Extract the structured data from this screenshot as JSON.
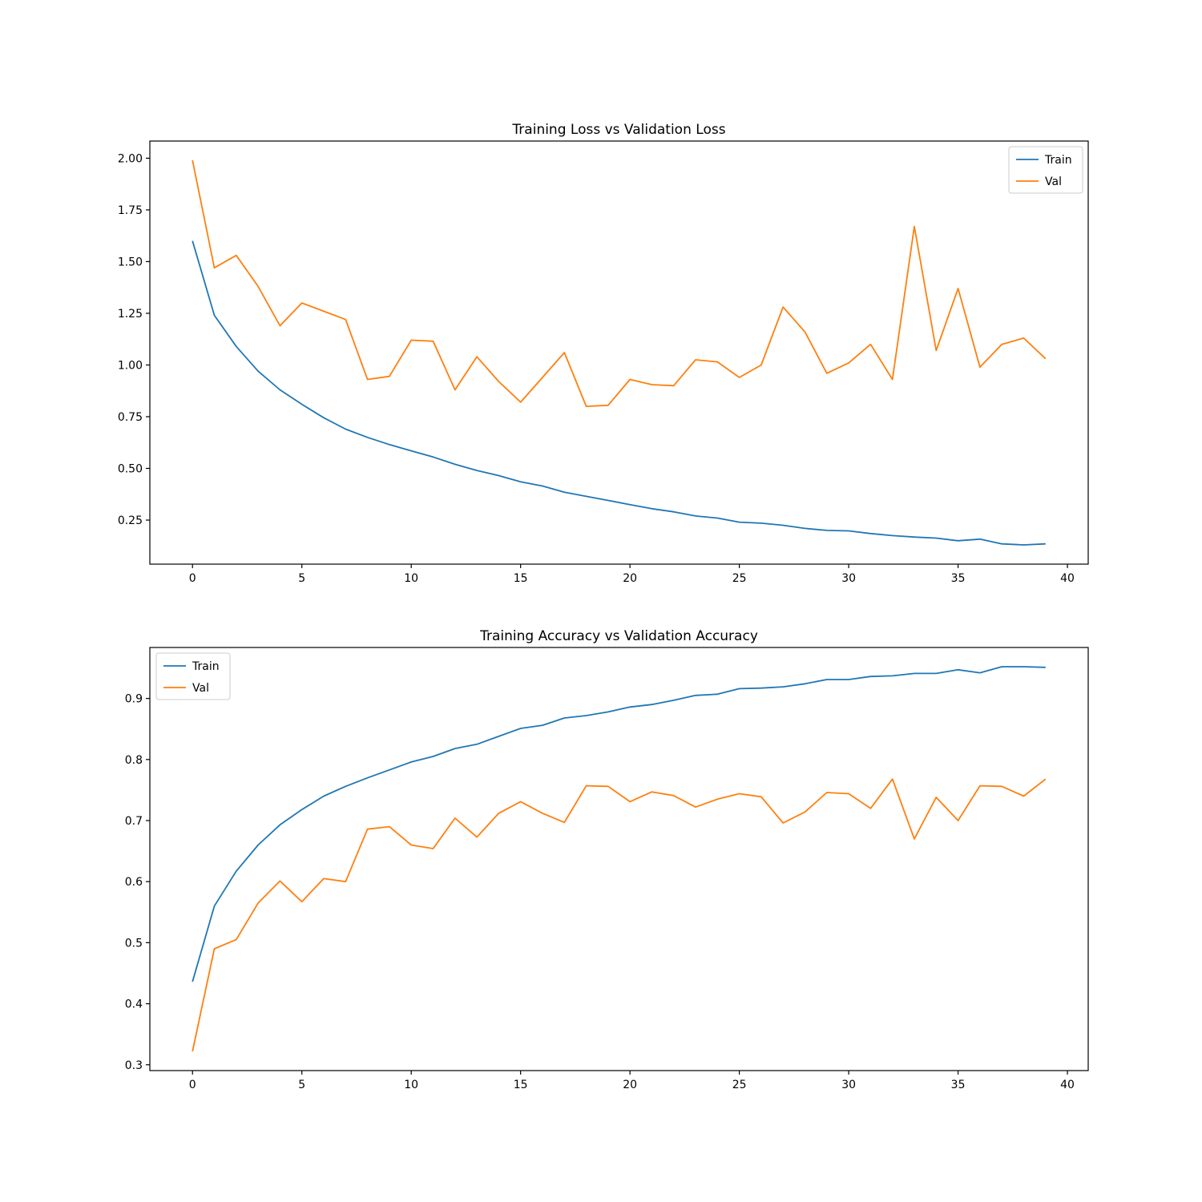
{
  "figure": {
    "background": "#ffffff",
    "text_color": "#000000",
    "spine_color": "#000000",
    "legend_border_color": "#cccccc"
  },
  "chart_data": [
    {
      "type": "line",
      "title": "Training Loss vs Validation Loss",
      "xlabel": "",
      "ylabel": "",
      "x": [
        0,
        1,
        2,
        3,
        4,
        5,
        6,
        7,
        8,
        9,
        10,
        11,
        12,
        13,
        14,
        15,
        16,
        17,
        18,
        19,
        20,
        21,
        22,
        23,
        24,
        25,
        26,
        27,
        28,
        29,
        30,
        31,
        32,
        33,
        34,
        35,
        36,
        37,
        38,
        39
      ],
      "series": [
        {
          "name": "Train",
          "color": "#1f77b4",
          "values": [
            1.6,
            1.24,
            1.09,
            0.97,
            0.88,
            0.81,
            0.745,
            0.69,
            0.65,
            0.615,
            0.585,
            0.555,
            0.52,
            0.49,
            0.465,
            0.435,
            0.415,
            0.385,
            0.365,
            0.345,
            0.325,
            0.305,
            0.29,
            0.27,
            0.26,
            0.24,
            0.235,
            0.225,
            0.21,
            0.2,
            0.198,
            0.185,
            0.175,
            0.168,
            0.163,
            0.15,
            0.158,
            0.135,
            0.13,
            0.135
          ]
        },
        {
          "name": "Val",
          "color": "#ff7f0e",
          "values": [
            1.99,
            1.47,
            1.53,
            1.38,
            1.19,
            1.3,
            1.26,
            1.22,
            0.93,
            0.945,
            1.12,
            1.115,
            0.88,
            1.04,
            0.92,
            0.82,
            0.94,
            1.06,
            0.8,
            0.805,
            0.93,
            0.905,
            0.9,
            1.025,
            1.015,
            0.94,
            1.0,
            1.28,
            1.16,
            0.96,
            1.01,
            1.1,
            0.93,
            1.67,
            1.07,
            1.37,
            0.99,
            1.1,
            1.13,
            1.03
          ]
        }
      ],
      "xlim": [
        -1.95,
        40.95
      ],
      "ylim": [
        0.037,
        2.083
      ],
      "xticks": [
        0,
        5,
        10,
        15,
        20,
        25,
        30,
        35,
        40
      ],
      "xtick_labels": [
        "0",
        "5",
        "10",
        "15",
        "20",
        "25",
        "30",
        "35",
        "40"
      ],
      "yticks": [
        0.25,
        0.5,
        0.75,
        1.0,
        1.25,
        1.5,
        1.75,
        2.0
      ],
      "ytick_labels": [
        "0.25",
        "0.50",
        "0.75",
        "1.00",
        "1.25",
        "1.50",
        "1.75",
        "2.00"
      ],
      "grid": false,
      "legend": {
        "position": "upper-right",
        "labels": [
          "Train",
          "Val"
        ]
      }
    },
    {
      "type": "line",
      "title": "Training Accuracy vs Validation Accuracy",
      "xlabel": "",
      "ylabel": "",
      "x": [
        0,
        1,
        2,
        3,
        4,
        5,
        6,
        7,
        8,
        9,
        10,
        11,
        12,
        13,
        14,
        15,
        16,
        17,
        18,
        19,
        20,
        21,
        22,
        23,
        24,
        25,
        26,
        27,
        28,
        29,
        30,
        31,
        32,
        33,
        34,
        35,
        36,
        37,
        38,
        39
      ],
      "series": [
        {
          "name": "Train",
          "color": "#1f77b4",
          "values": [
            0.436,
            0.56,
            0.617,
            0.66,
            0.693,
            0.718,
            0.74,
            0.756,
            0.77,
            0.783,
            0.796,
            0.805,
            0.818,
            0.825,
            0.838,
            0.851,
            0.856,
            0.868,
            0.872,
            0.878,
            0.886,
            0.89,
            0.897,
            0.905,
            0.907,
            0.916,
            0.917,
            0.919,
            0.924,
            0.931,
            0.931,
            0.936,
            0.937,
            0.941,
            0.941,
            0.947,
            0.942,
            0.952,
            0.952,
            0.951
          ]
        },
        {
          "name": "Val",
          "color": "#ff7f0e",
          "values": [
            0.322,
            0.49,
            0.505,
            0.565,
            0.601,
            0.567,
            0.605,
            0.6,
            0.686,
            0.69,
            0.66,
            0.654,
            0.704,
            0.673,
            0.712,
            0.731,
            0.712,
            0.697,
            0.757,
            0.756,
            0.731,
            0.747,
            0.741,
            0.722,
            0.735,
            0.744,
            0.739,
            0.696,
            0.714,
            0.746,
            0.744,
            0.72,
            0.768,
            0.67,
            0.738,
            0.7,
            0.757,
            0.756,
            0.74,
            0.768
          ]
        }
      ],
      "xlim": [
        -1.95,
        40.95
      ],
      "ylim": [
        0.2905,
        0.9835
      ],
      "xticks": [
        0,
        5,
        10,
        15,
        20,
        25,
        30,
        35,
        40
      ],
      "xtick_labels": [
        "0",
        "5",
        "10",
        "15",
        "20",
        "25",
        "30",
        "35",
        "40"
      ],
      "yticks": [
        0.3,
        0.4,
        0.5,
        0.6,
        0.7,
        0.8,
        0.9
      ],
      "ytick_labels": [
        "0.3",
        "0.4",
        "0.5",
        "0.6",
        "0.7",
        "0.8",
        "0.9"
      ],
      "grid": false,
      "legend": {
        "position": "upper-left",
        "labels": [
          "Train",
          "Val"
        ]
      }
    }
  ]
}
